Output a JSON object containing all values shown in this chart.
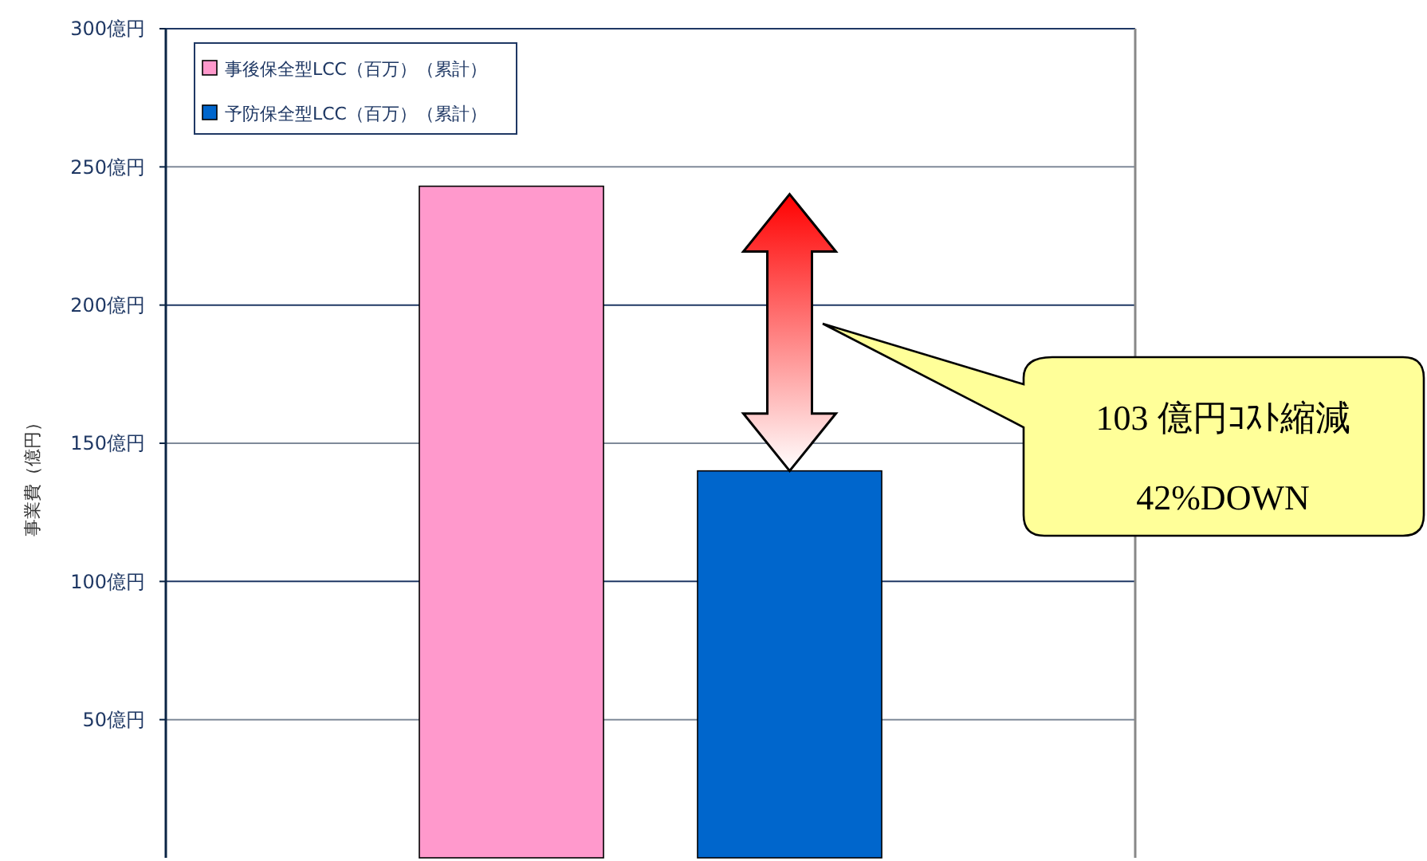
{
  "chart_data": {
    "type": "bar",
    "ylabel": "事業費（億円）",
    "categories": [
      null
    ],
    "series": [
      {
        "name": "事後保全型LCC（百万）（累計）",
        "color": "#ff99cc",
        "values": [
          243
        ]
      },
      {
        "name": "予防保全型LCC（百万）（累計）",
        "color": "#0066cc",
        "values": [
          140
        ]
      }
    ],
    "ylim": [
      0,
      300
    ],
    "yticks": [
      {
        "value": 50,
        "label": "50億円"
      },
      {
        "value": 100,
        "label": "100億円"
      },
      {
        "value": 150,
        "label": "150億円"
      },
      {
        "value": 200,
        "label": "200億円"
      },
      {
        "value": 250,
        "label": "250億円"
      },
      {
        "value": 300,
        "label": "300億円"
      }
    ],
    "grid": "y",
    "legend": "top left",
    "annotations": [
      "103 億円ｺｽﾄ縮減",
      "42%DOWN"
    ]
  }
}
